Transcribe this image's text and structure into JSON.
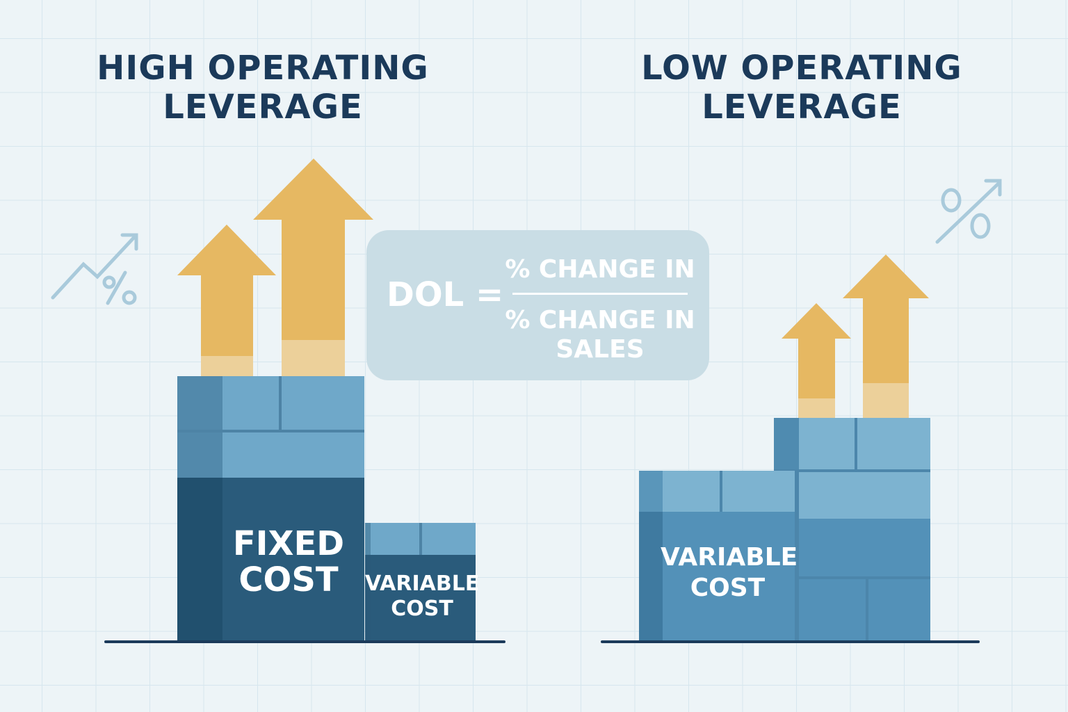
{
  "left_panel": {
    "title_line1": "HIGH OPERATING",
    "title_line2": "LEVERAGE",
    "fixed_cost_line1": "FIXED",
    "fixed_cost_line2": "COST",
    "variable_cost_line1": "VARIABLE",
    "variable_cost_line2": "COST",
    "icon": "trend-percent-icon"
  },
  "right_panel": {
    "title_line1": "LOW OPERATING",
    "title_line2": "LEVERAGE",
    "variable_cost_line1": "VARIABLE",
    "variable_cost_line2": "COST",
    "icon": "percent-arrow-icon"
  },
  "formula": {
    "lhs": "DOL =",
    "numerator": "% CHANGE IN",
    "denominator_line1": "% CHANGE IN",
    "denominator_line2": "SALES"
  },
  "colors": {
    "arrow": "#e6b862",
    "dark_blue": "#275a7a",
    "mid_blue": "#5291b8",
    "light_blue": "#6fa8c9",
    "title": "#1b3a5a"
  }
}
